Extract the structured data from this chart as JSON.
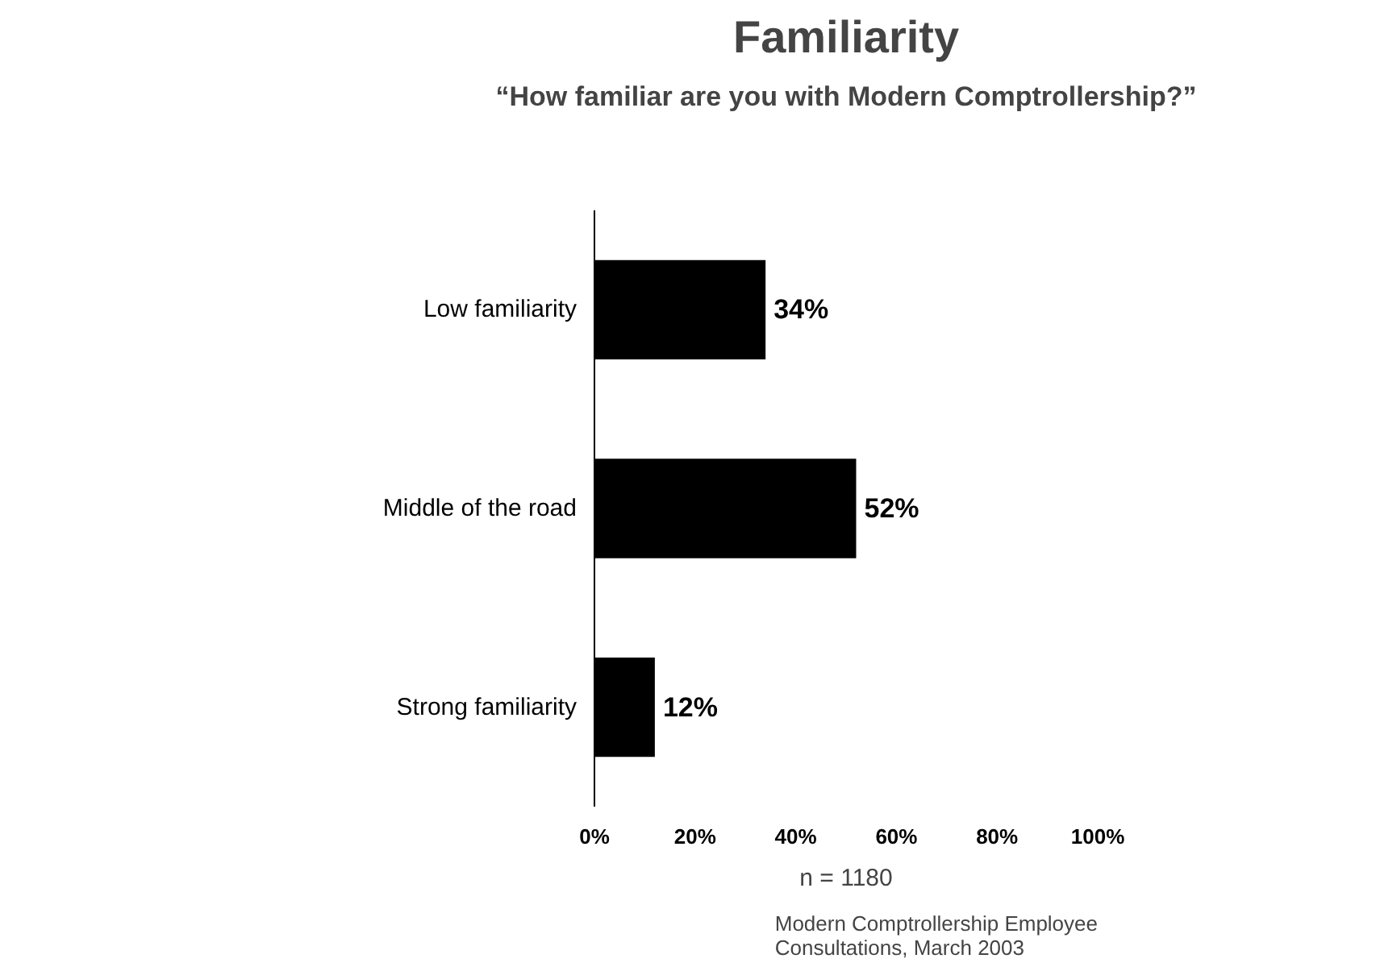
{
  "chart_data": {
    "type": "bar",
    "orientation": "horizontal",
    "title": "Familiarity",
    "subtitle": "“How familiar are you with Modern Comptrollership?”",
    "categories": [
      "Low familiarity",
      "Middle of the road",
      "Strong familiarity"
    ],
    "values": [
      34,
      52,
      12
    ],
    "color": "#000000",
    "value_labels": [
      "34%",
      "52%",
      "12%"
    ],
    "xlim": [
      0,
      100
    ],
    "xticks": [
      {
        "value": 0,
        "label": "0%"
      },
      {
        "value": 20,
        "label": "20%"
      },
      {
        "value": 40,
        "label": "40%"
      },
      {
        "value": 60,
        "label": "60%"
      },
      {
        "value": 80,
        "label": "80%"
      },
      {
        "value": 100,
        "label": "100%"
      }
    ],
    "grid": false,
    "annotations": [
      "Modern Comptrollership Employee\nConsultations, March 2003",
      "n = 1180"
    ]
  }
}
